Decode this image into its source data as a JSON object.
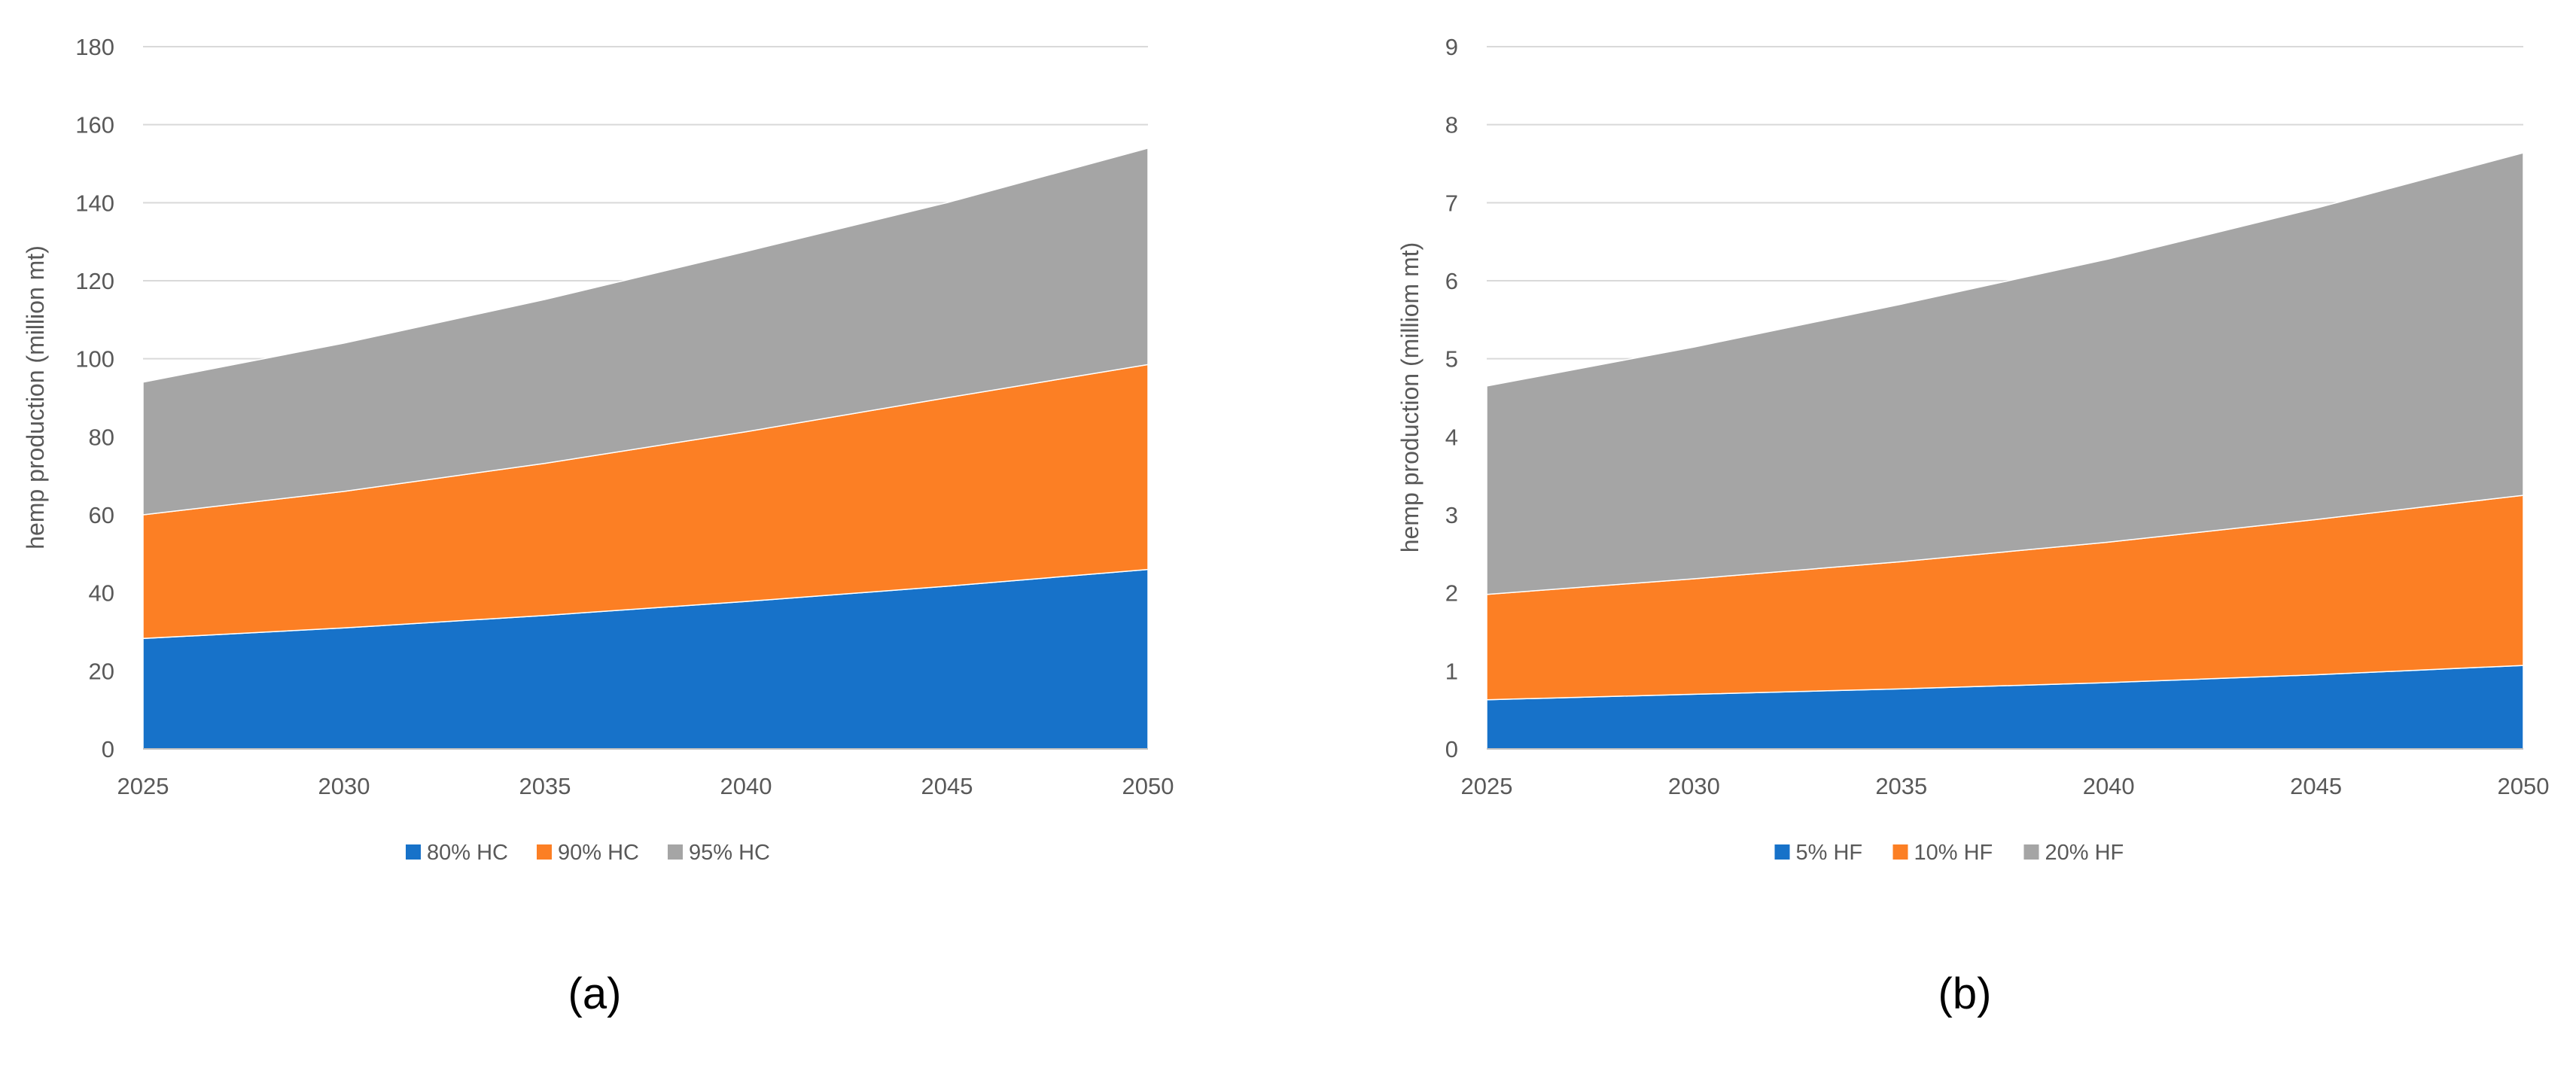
{
  "colors": {
    "blue": "#1772C9",
    "orange": "#FC7F24",
    "gray": "#A5A5A5",
    "grid": "#D9D9D9"
  },
  "chart_data": [
    {
      "type": "area",
      "stacked": true,
      "caption": "(a)",
      "title": "",
      "xlabel": "",
      "ylabel": "hemp production (million mt)",
      "x": [
        2025,
        2030,
        2035,
        2040,
        2045,
        2050
      ],
      "ylim": [
        0,
        180
      ],
      "yticks": [
        0,
        20,
        40,
        60,
        80,
        100,
        120,
        140,
        160,
        180
      ],
      "grid": true,
      "legend": "bottom",
      "series": [
        {
          "name": "80% HC",
          "color": "#1772C9",
          "values": [
            28.3,
            31.0,
            34.2,
            37.8,
            41.7,
            46.0
          ]
        },
        {
          "name": "90% HC",
          "color": "#FC7F24",
          "values": [
            31.7,
            35.0,
            39.0,
            43.5,
            48.3,
            52.5
          ]
        },
        {
          "name": "95% HC",
          "color": "#A5A5A5",
          "values": [
            34.0,
            38.0,
            42.0,
            46.2,
            50.0,
            55.5
          ]
        }
      ]
    },
    {
      "type": "area",
      "stacked": true,
      "caption": "(b)",
      "title": "",
      "xlabel": "",
      "ylabel": "hemp production (milliom mt)",
      "x": [
        2025,
        2030,
        2035,
        2040,
        2045,
        2050
      ],
      "ylim": [
        0,
        9
      ],
      "yticks": [
        0,
        1,
        2,
        3,
        4,
        5,
        6,
        7,
        8,
        9
      ],
      "grid": true,
      "legend": "bottom",
      "series": [
        {
          "name": "5% HF",
          "color": "#1772C9",
          "values": [
            0.63,
            0.7,
            0.77,
            0.85,
            0.95,
            1.07
          ]
        },
        {
          "name": "10% HF",
          "color": "#FC7F24",
          "values": [
            1.35,
            1.48,
            1.63,
            1.8,
            1.99,
            2.18
          ]
        },
        {
          "name": "20% HF",
          "color": "#A5A5A5",
          "values": [
            2.67,
            2.97,
            3.3,
            3.63,
            3.99,
            4.39
          ]
        }
      ]
    }
  ]
}
